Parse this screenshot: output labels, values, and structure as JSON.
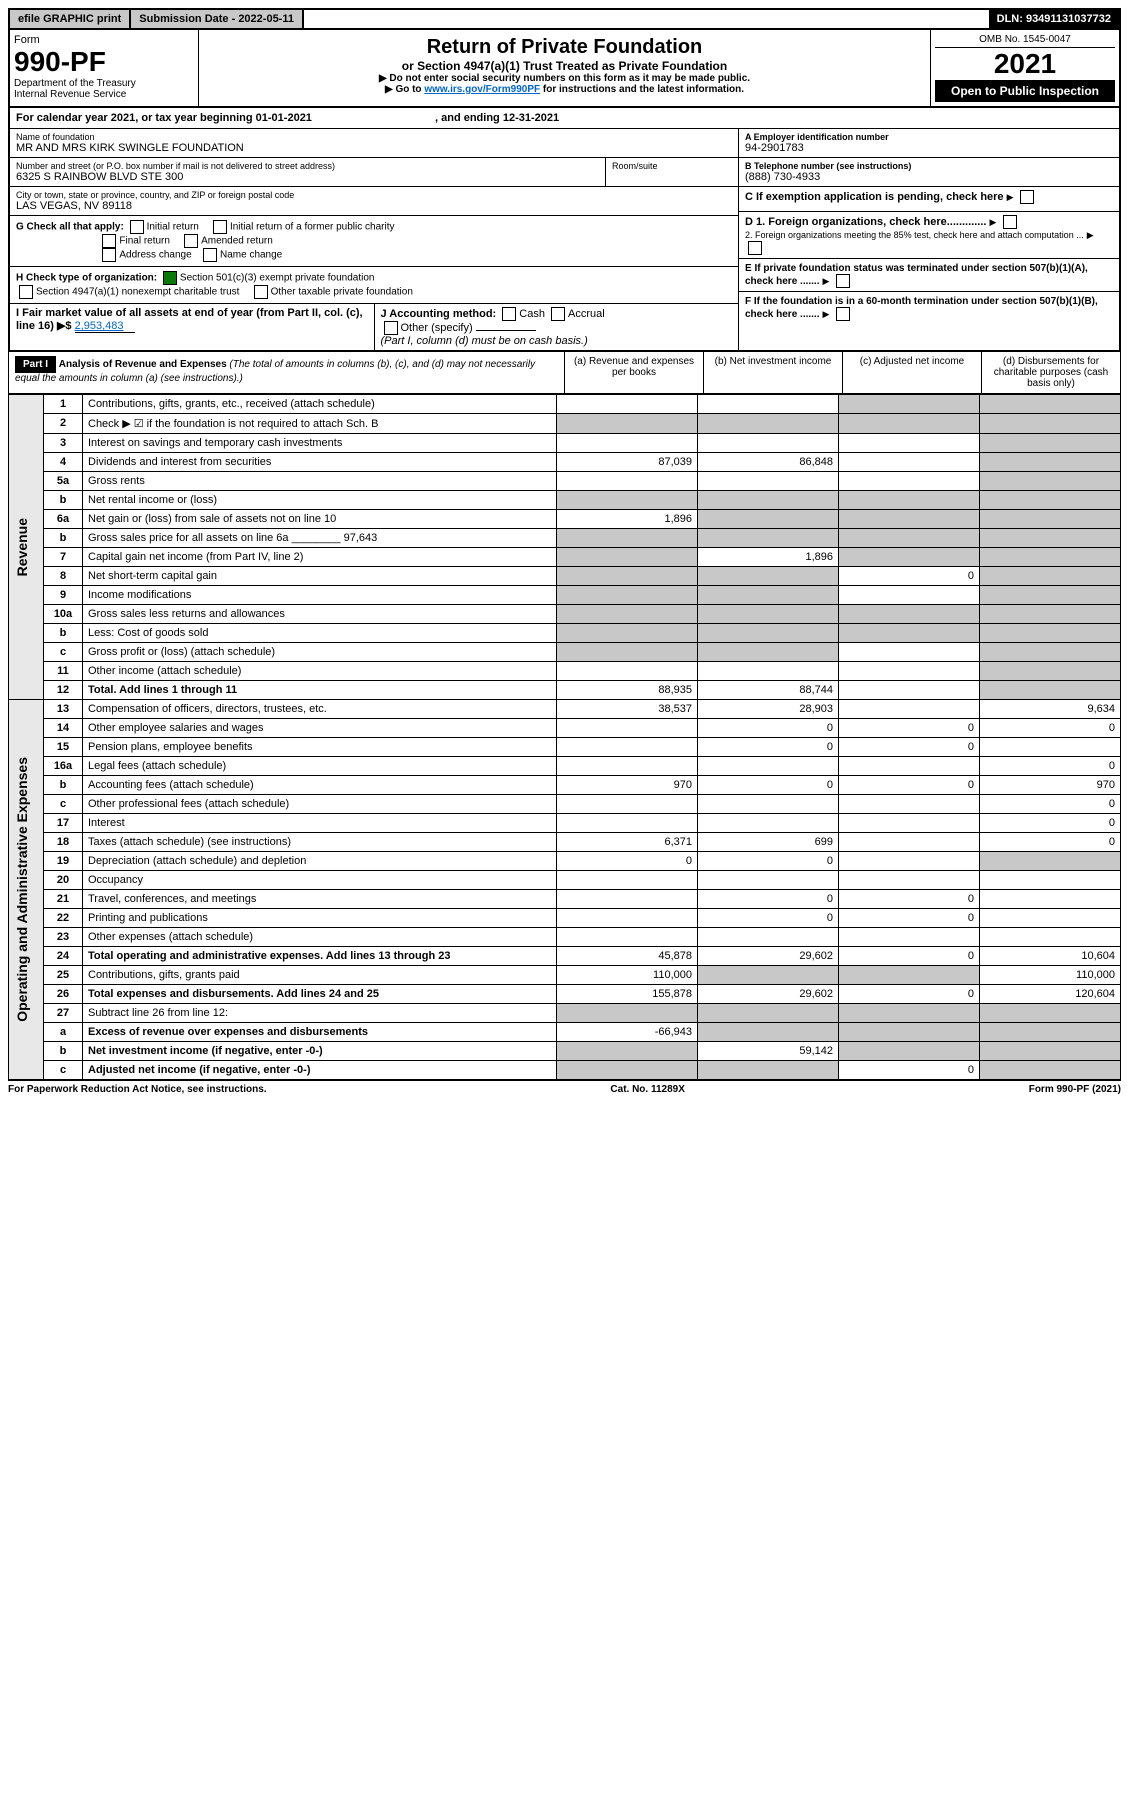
{
  "topbar": {
    "efile": "efile GRAPHIC print",
    "subdate_label": "Submission Date - 2022-05-11",
    "dln": "DLN: 93491131037732"
  },
  "header": {
    "form_word": "Form",
    "form_no": "990-PF",
    "dept": "Department of the Treasury",
    "irs": "Internal Revenue Service",
    "title": "Return of Private Foundation",
    "subtitle": "or Section 4947(a)(1) Trust Treated as Private Foundation",
    "instr1": "▶ Do not enter social security numbers on this form as it may be made public.",
    "instr2_pre": "▶ Go to ",
    "instr2_link": "www.irs.gov/Form990PF",
    "instr2_post": " for instructions and the latest information.",
    "omb": "OMB No. 1545-0047",
    "year": "2021",
    "open": "Open to Public Inspection"
  },
  "calyear": {
    "text_pre": "For calendar year 2021, or tax year beginning ",
    "begin": "01-01-2021",
    "text_mid": " , and ending ",
    "end": "12-31-2021"
  },
  "entity": {
    "name_hdr": "Name of foundation",
    "name": "MR AND MRS KIRK SWINGLE FOUNDATION",
    "addr_hdr": "Number and street (or P.O. box number if mail is not delivered to street address)",
    "addr": "6325 S RAINBOW BLVD STE 300",
    "room_hdr": "Room/suite",
    "city_hdr": "City or town, state or province, country, and ZIP or foreign postal code",
    "city": "LAS VEGAS, NV  89118",
    "ein_hdr": "A Employer identification number",
    "ein": "94-2901783",
    "tel_hdr": "B Telephone number (see instructions)",
    "tel": "(888) 730-4933",
    "c_text": "C If exemption application is pending, check here",
    "d1_text": "D 1. Foreign organizations, check here.............",
    "d2_text": "2. Foreign organizations meeting the 85% test, check here and attach computation ...",
    "e_text": "E If private foundation status was terminated under section 507(b)(1)(A), check here .......",
    "f_text": "F If the foundation is in a 60-month termination under section 507(b)(1)(B), check here .......",
    "g_label": "G Check all that apply:",
    "g_opts": [
      "Initial return",
      "Initial return of a former public charity",
      "Final return",
      "Amended return",
      "Address change",
      "Name change"
    ],
    "h_label": "H Check type of organization:",
    "h_opt1": "Section 501(c)(3) exempt private foundation",
    "h_opt2": "Section 4947(a)(1) nonexempt charitable trust",
    "h_opt3": "Other taxable private foundation",
    "i_label": "I Fair market value of all assets at end of year (from Part II, col. (c), line 16) ▶$ ",
    "i_val": "2,953,483",
    "j_label": "J Accounting method:",
    "j_opts": [
      "Cash",
      "Accrual"
    ],
    "j_other": "Other (specify)",
    "j_note": "(Part I, column (d) must be on cash basis.)"
  },
  "part1": {
    "label": "Part I",
    "title": "Analysis of Revenue and Expenses",
    "title_note": "(The total of amounts in columns (b), (c), and (d) may not necessarily equal the amounts in column (a) (see instructions).)",
    "col_a": "(a) Revenue and expenses per books",
    "col_b": "(b) Net investment income",
    "col_c": "(c) Adjusted net income",
    "col_d": "(d) Disbursements for charitable purposes (cash basis only)"
  },
  "sidebars": {
    "revenue": "Revenue",
    "expenses": "Operating and Administrative Expenses"
  },
  "rows": [
    {
      "n": "1",
      "d": "Contributions, gifts, grants, etc., received (attach schedule)",
      "a": "",
      "b": "",
      "c": "s",
      "ds": "s"
    },
    {
      "n": "2",
      "d": "Check ▶ ☑ if the foundation is not required to attach Sch. B",
      "a": "s",
      "b": "s",
      "c": "s",
      "ds": "s",
      "bold_not": true
    },
    {
      "n": "3",
      "d": "Interest on savings and temporary cash investments",
      "a": "",
      "b": "",
      "c": "",
      "ds": "s"
    },
    {
      "n": "4",
      "d": "Dividends and interest from securities",
      "a": "87,039",
      "b": "86,848",
      "c": "",
      "ds": "s"
    },
    {
      "n": "5a",
      "d": "Gross rents",
      "a": "",
      "b": "",
      "c": "",
      "ds": "s"
    },
    {
      "n": "b",
      "d": "Net rental income or (loss)",
      "a": "s",
      "b": "s",
      "c": "s",
      "ds": "s"
    },
    {
      "n": "6a",
      "d": "Net gain or (loss) from sale of assets not on line 10",
      "a": "1,896",
      "b": "s",
      "c": "s",
      "ds": "s"
    },
    {
      "n": "b",
      "d": "Gross sales price for all assets on line 6a ________ 97,643",
      "a": "s",
      "b": "s",
      "c": "s",
      "ds": "s"
    },
    {
      "n": "7",
      "d": "Capital gain net income (from Part IV, line 2)",
      "a": "s",
      "b": "1,896",
      "c": "s",
      "ds": "s"
    },
    {
      "n": "8",
      "d": "Net short-term capital gain",
      "a": "s",
      "b": "s",
      "c": "0",
      "ds": "s"
    },
    {
      "n": "9",
      "d": "Income modifications",
      "a": "s",
      "b": "s",
      "c": "",
      "ds": "s"
    },
    {
      "n": "10a",
      "d": "Gross sales less returns and allowances",
      "a": "s",
      "b": "s",
      "c": "s",
      "ds": "s"
    },
    {
      "n": "b",
      "d": "Less: Cost of goods sold",
      "a": "s",
      "b": "s",
      "c": "s",
      "ds": "s"
    },
    {
      "n": "c",
      "d": "Gross profit or (loss) (attach schedule)",
      "a": "s",
      "b": "s",
      "c": "",
      "ds": "s"
    },
    {
      "n": "11",
      "d": "Other income (attach schedule)",
      "a": "",
      "b": "",
      "c": "",
      "ds": "s"
    },
    {
      "n": "12",
      "d": "Total. Add lines 1 through 11",
      "a": "88,935",
      "b": "88,744",
      "c": "",
      "ds": "s",
      "bold": true
    },
    {
      "n": "13",
      "d": "Compensation of officers, directors, trustees, etc.",
      "a": "38,537",
      "b": "28,903",
      "c": "",
      "ds": "9,634"
    },
    {
      "n": "14",
      "d": "Other employee salaries and wages",
      "a": "",
      "b": "0",
      "c": "0",
      "ds": "0"
    },
    {
      "n": "15",
      "d": "Pension plans, employee benefits",
      "a": "",
      "b": "0",
      "c": "0",
      "ds": ""
    },
    {
      "n": "16a",
      "d": "Legal fees (attach schedule)",
      "a": "",
      "b": "",
      "c": "",
      "ds": "0"
    },
    {
      "n": "b",
      "d": "Accounting fees (attach schedule)",
      "a": "970",
      "b": "0",
      "c": "0",
      "ds": "970"
    },
    {
      "n": "c",
      "d": "Other professional fees (attach schedule)",
      "a": "",
      "b": "",
      "c": "",
      "ds": "0"
    },
    {
      "n": "17",
      "d": "Interest",
      "a": "",
      "b": "",
      "c": "",
      "ds": "0"
    },
    {
      "n": "18",
      "d": "Taxes (attach schedule) (see instructions)",
      "a": "6,371",
      "b": "699",
      "c": "",
      "ds": "0"
    },
    {
      "n": "19",
      "d": "Depreciation (attach schedule) and depletion",
      "a": "0",
      "b": "0",
      "c": "",
      "ds": "s"
    },
    {
      "n": "20",
      "d": "Occupancy",
      "a": "",
      "b": "",
      "c": "",
      "ds": ""
    },
    {
      "n": "21",
      "d": "Travel, conferences, and meetings",
      "a": "",
      "b": "0",
      "c": "0",
      "ds": ""
    },
    {
      "n": "22",
      "d": "Printing and publications",
      "a": "",
      "b": "0",
      "c": "0",
      "ds": ""
    },
    {
      "n": "23",
      "d": "Other expenses (attach schedule)",
      "a": "",
      "b": "",
      "c": "",
      "ds": ""
    },
    {
      "n": "24",
      "d": "Total operating and administrative expenses. Add lines 13 through 23",
      "a": "45,878",
      "b": "29,602",
      "c": "0",
      "ds": "10,604",
      "bold": true
    },
    {
      "n": "25",
      "d": "Contributions, gifts, grants paid",
      "a": "110,000",
      "b": "s",
      "c": "s",
      "ds": "110,000"
    },
    {
      "n": "26",
      "d": "Total expenses and disbursements. Add lines 24 and 25",
      "a": "155,878",
      "b": "29,602",
      "c": "0",
      "ds": "120,604",
      "bold": true
    },
    {
      "n": "27",
      "d": "Subtract line 26 from line 12:",
      "a": "s",
      "b": "s",
      "c": "s",
      "ds": "s"
    },
    {
      "n": "a",
      "d": "Excess of revenue over expenses and disbursements",
      "a": "-66,943",
      "b": "s",
      "c": "s",
      "ds": "s",
      "bold": true
    },
    {
      "n": "b",
      "d": "Net investment income (if negative, enter -0-)",
      "a": "s",
      "b": "59,142",
      "c": "s",
      "ds": "s",
      "bold": true
    },
    {
      "n": "c",
      "d": "Adjusted net income (if negative, enter -0-)",
      "a": "s",
      "b": "s",
      "c": "0",
      "ds": "s",
      "bold": true
    }
  ],
  "footer": {
    "left": "For Paperwork Reduction Act Notice, see instructions.",
    "mid": "Cat. No. 11289X",
    "right": "Form 990-PF (2021)"
  },
  "colors": {
    "shade": "#c8c8c8",
    "link": "#0066cc",
    "check_green": "#0a7a0a"
  }
}
